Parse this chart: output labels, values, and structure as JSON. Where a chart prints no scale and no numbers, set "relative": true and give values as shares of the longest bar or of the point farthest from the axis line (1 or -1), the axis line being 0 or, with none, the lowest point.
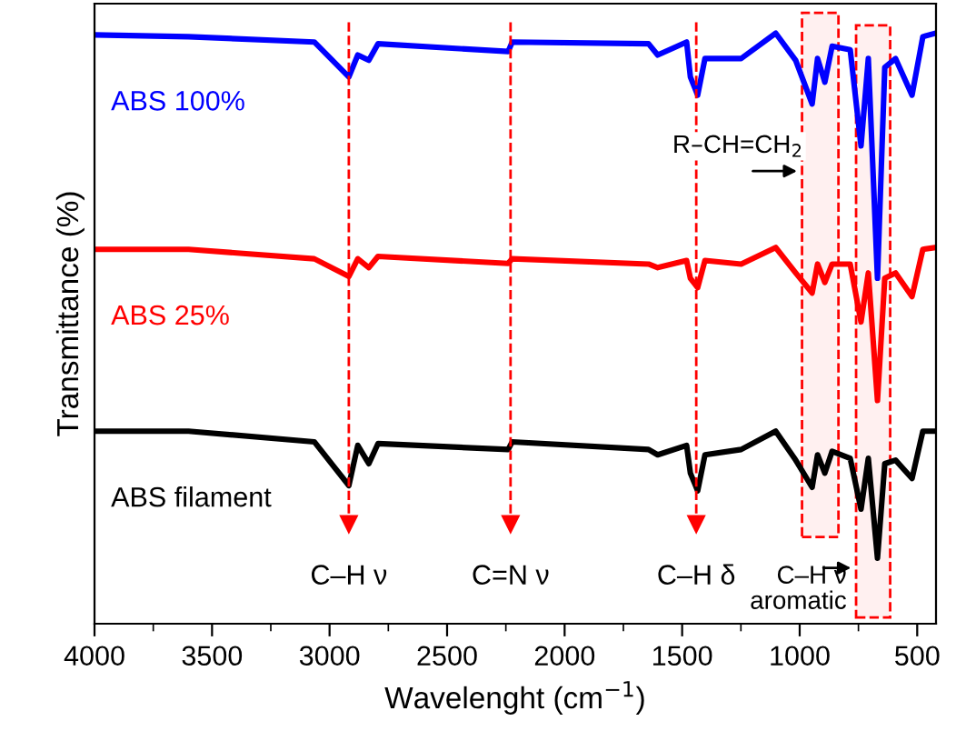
{
  "chart_data": {
    "type": "line",
    "relative": true,
    "xlabel": "Wavelenght (cm$^{−1}$)",
    "ylabel": "Transmittance (%)",
    "xlim": [
      4000,
      420
    ],
    "xticks": [
      4000,
      {
        "value": 3750,
        "label": null
      },
      3500,
      {
        "value": 3250,
        "label": null
      },
      3000,
      {
        "value": 2750,
        "label": null
      },
      2500,
      {
        "value": 2250,
        "label": null
      },
      2000,
      {
        "value": 1750,
        "label": null
      },
      1500,
      {
        "value": 1250,
        "label": null
      },
      1000,
      {
        "value": 750,
        "label": null
      },
      500
    ],
    "x": [
      4000,
      3600,
      3065,
      2918,
      2880,
      2833,
      2794,
      2240,
      2223,
      1643,
      1604,
      1481,
      1465,
      1434,
      1403,
      1249,
      1102,
      1017,
      947,
      924,
      893,
      862,
      785,
      739,
      708,
      669,
      638,
      592,
      522,
      476,
      422
    ],
    "legend": false,
    "grid": false,
    "marker": "none",
    "line_style": "solid",
    "series": [
      {
        "name": "ABS 100%",
        "color": "#0000ff",
        "values": [
          0.997,
          0.994,
          0.985,
          0.926,
          0.963,
          0.954,
          0.982,
          0.969,
          0.985,
          0.982,
          0.963,
          0.985,
          0.926,
          0.895,
          0.957,
          0.957,
          1.0,
          0.954,
          0.88,
          0.957,
          0.917,
          0.978,
          0.972,
          0.809,
          0.957,
          0.585,
          0.942,
          0.957,
          0.895,
          0.994,
          1.0
        ]
      },
      {
        "name": "ABS 25%",
        "color": "#ff0000",
        "values": [
          0.634,
          0.634,
          0.618,
          0.588,
          0.618,
          0.603,
          0.622,
          0.61,
          0.618,
          0.609,
          0.603,
          0.615,
          0.585,
          0.569,
          0.615,
          0.609,
          0.637,
          0.594,
          0.56,
          0.609,
          0.578,
          0.609,
          0.609,
          0.511,
          0.594,
          0.378,
          0.585,
          0.594,
          0.554,
          0.634,
          0.637
        ]
      },
      {
        "name": "ABS filament",
        "color": "#000000",
        "values": [
          0.326,
          0.326,
          0.308,
          0.234,
          0.302,
          0.271,
          0.305,
          0.295,
          0.308,
          0.295,
          0.286,
          0.302,
          0.255,
          0.225,
          0.286,
          0.295,
          0.326,
          0.277,
          0.231,
          0.286,
          0.255,
          0.292,
          0.28,
          0.194,
          0.28,
          0.111,
          0.271,
          0.277,
          0.246,
          0.326,
          0.326
        ]
      }
    ],
    "ref_lines": [
      {
        "axis": "x",
        "value": 2918,
        "label": "C–H ν",
        "color": "#ff0000",
        "line_style": "dashed"
      },
      {
        "axis": "x",
        "value": 2230,
        "label": "C=N ν",
        "color": "#ff0000",
        "line_style": "dashed"
      },
      {
        "axis": "x",
        "value": 1440,
        "label": "C–H δ",
        "color": "#ff0000",
        "line_style": "dashed"
      }
    ],
    "bands": [
      {
        "axis": "x",
        "from": 990,
        "to": 835,
        "label": "R–CH=CH$_{2}$",
        "color": "#ff0000"
      },
      {
        "axis": "x",
        "from": 760,
        "to": 615,
        "label": "C–H ν\naromatic",
        "color": "#ff0000"
      }
    ]
  }
}
